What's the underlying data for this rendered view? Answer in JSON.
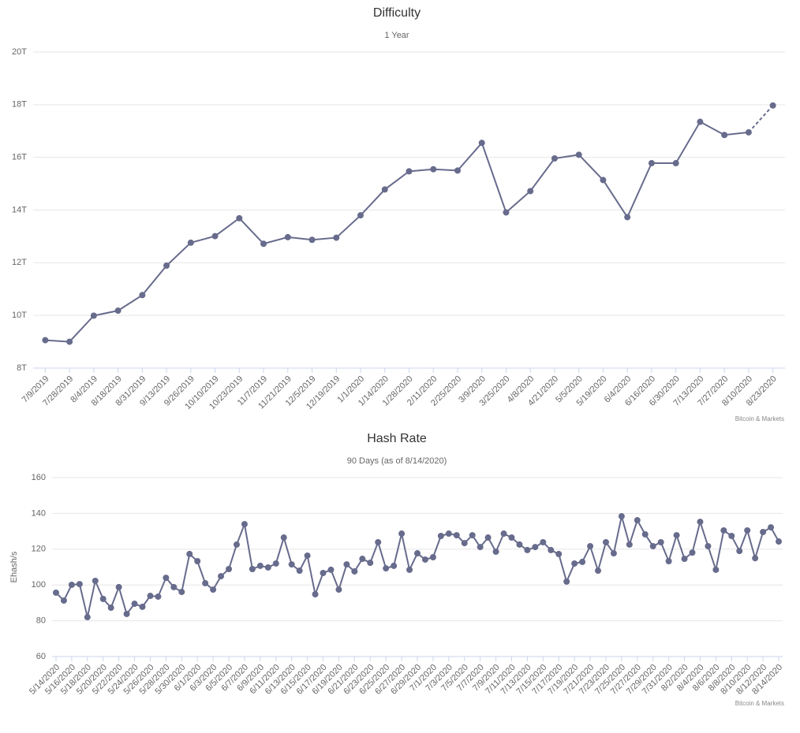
{
  "chart_data": [
    {
      "type": "line",
      "title": "Difficulty",
      "subtitle": "1 Year",
      "source": "Bitcoin & Markets",
      "categories": [
        "7/9/2019",
        "7/28/2019",
        "8/4/2019",
        "8/18/2019",
        "8/31/2019",
        "9/13/2019",
        "9/26/2019",
        "10/10/2019",
        "10/23/2019",
        "11/7/2019",
        "11/21/2019",
        "12/5/2019",
        "12/19/2019",
        "1/1/2020",
        "1/14/2020",
        "1/28/2020",
        "2/11/2020",
        "2/25/2020",
        "3/9/2020",
        "3/25/2020",
        "4/8/2020",
        "4/21/2020",
        "5/5/2020",
        "5/19/2020",
        "6/4/2020",
        "6/16/2020",
        "6/30/2020",
        "7/13/2020",
        "7/27/2020",
        "8/10/2020",
        "8/23/2020"
      ],
      "values": [
        9.06,
        9.0,
        9.99,
        10.18,
        10.77,
        11.89,
        12.76,
        13.01,
        13.69,
        12.72,
        12.97,
        12.87,
        12.95,
        13.8,
        14.78,
        15.47,
        15.55,
        15.5,
        16.55,
        13.91,
        14.72,
        15.96,
        16.1,
        15.14,
        13.73,
        15.78,
        15.78,
        17.35,
        16.85,
        16.95,
        17.97
      ],
      "dashed_from": 29,
      "color": "#676b8c",
      "ylim": [
        8,
        20
      ],
      "yticks": [
        {
          "value": 8,
          "label": "8T"
        },
        {
          "value": 10,
          "label": "10T"
        },
        {
          "value": 12,
          "label": "12T"
        },
        {
          "value": 14,
          "label": "14T"
        },
        {
          "value": 16,
          "label": "16T"
        },
        {
          "value": 18,
          "label": "18T"
        },
        {
          "value": 20,
          "label": "20T"
        }
      ],
      "grid": true
    },
    {
      "type": "line",
      "title": "Hash Rate",
      "subtitle": "90 Days (as of 8/14/2020)",
      "y_label": "Ehash/s",
      "source": "Bitcoin & Markets",
      "categories": [
        "5/14/2020",
        null,
        "5/16/2020",
        null,
        "5/18/2020",
        null,
        "5/20/2020",
        null,
        "5/22/2020",
        null,
        "5/24/2020",
        null,
        "5/26/2020",
        null,
        "5/28/2020",
        null,
        "5/30/2020",
        null,
        "6/1/2020",
        null,
        "6/3/2020",
        null,
        "6/5/2020",
        null,
        "6/7/2020",
        null,
        "6/9/2020",
        null,
        "6/11/2020",
        null,
        "6/13/2020",
        null,
        "6/15/2020",
        null,
        "6/17/2020",
        null,
        "6/19/2020",
        null,
        "6/21/2020",
        null,
        "6/23/2020",
        null,
        "6/25/2020",
        null,
        "6/27/2020",
        null,
        "6/29/2020",
        null,
        "7/1/2020",
        null,
        "7/3/2020",
        null,
        "7/5/2020",
        null,
        "7/7/2020",
        null,
        "7/9/2020",
        null,
        "7/11/2020",
        null,
        "7/13/2020",
        null,
        "7/15/2020",
        null,
        "7/17/2020",
        null,
        "7/19/2020",
        null,
        "7/21/2020",
        null,
        "7/23/2020",
        null,
        "7/25/2020",
        null,
        "7/27/2020",
        null,
        "7/29/2020",
        null,
        "7/31/2020",
        null,
        "8/2/2020",
        null,
        "8/4/2020",
        null,
        "8/6/2020",
        null,
        "8/8/2020",
        null,
        "8/10/2020",
        null,
        "8/12/2020",
        null,
        "8/14/2020"
      ],
      "values": [
        95.7,
        91.3,
        100.1,
        100.5,
        82,
        102.3,
        92.2,
        87.3,
        98.8,
        83.8,
        89.5,
        87.8,
        93.9,
        93.5,
        104,
        98.8,
        96.1,
        117.3,
        113.3,
        101,
        97.4,
        104.9,
        108.9,
        122.6,
        134,
        108.9,
        110.7,
        109.8,
        112,
        126.5,
        111.5,
        108,
        116.4,
        94.8,
        106.7,
        108.5,
        97.4,
        111.5,
        107.6,
        114.6,
        112.4,
        123.9,
        109.3,
        110.7,
        128.7,
        108.5,
        117.7,
        114.2,
        115.5,
        127.4,
        128.7,
        127.8,
        123.4,
        127.8,
        121.2,
        126.5,
        118.6,
        128.7,
        126.5,
        122.6,
        119.5,
        121.2,
        123.9,
        119.5,
        117.3,
        101.9,
        112,
        112.9,
        121.7,
        108,
        123.9,
        117.7,
        138.4,
        122.6,
        136.2,
        128.3,
        121.7,
        123.9,
        113.3,
        127.8,
        114.6,
        118.1,
        135.3,
        121.7,
        108.5,
        130.5,
        127.4,
        119,
        130.5,
        115,
        129.6,
        132.2,
        124.3
      ],
      "color": "#676b8c",
      "ylim": [
        60,
        160
      ],
      "yticks": [
        60,
        80,
        100,
        120,
        140,
        160
      ],
      "grid": true
    }
  ]
}
